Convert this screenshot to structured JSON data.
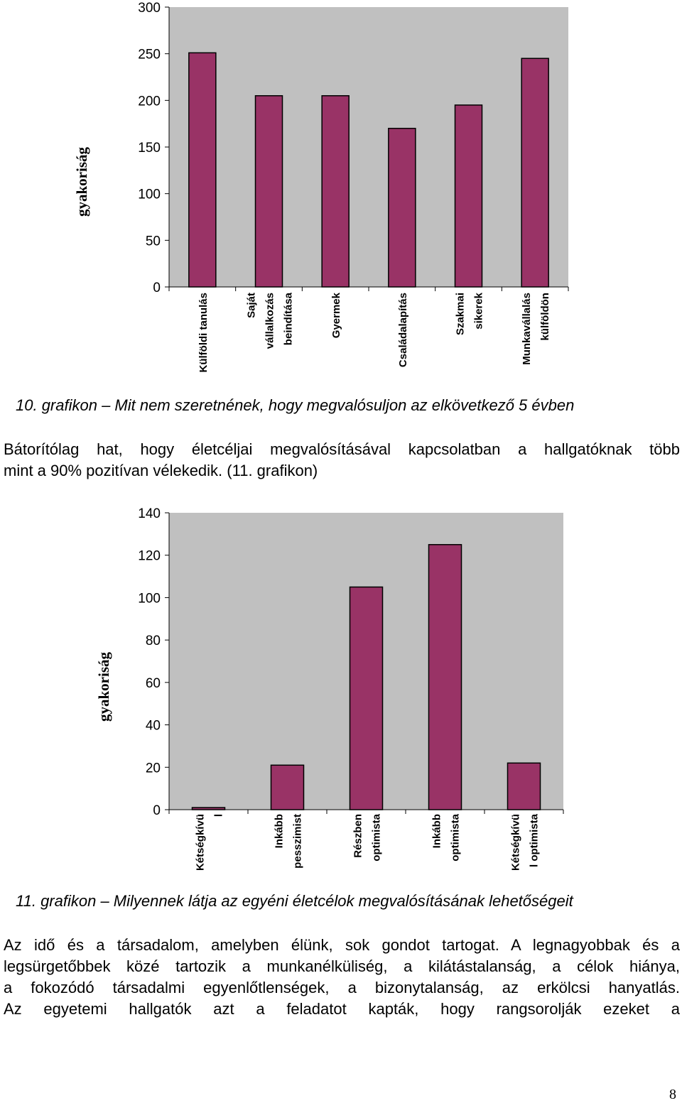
{
  "charts": [
    {
      "chart_data": {
        "type": "bar",
        "ylabel": "gyakoriság",
        "ylim": [
          0,
          300
        ],
        "yticks": [
          0,
          50,
          100,
          150,
          200,
          250,
          300
        ],
        "categories": [
          [
            "Külföldi tanulás"
          ],
          [
            "Saját",
            "vállalkozás",
            "beindítása"
          ],
          [
            "Gyermek"
          ],
          [
            "Családalapítás"
          ],
          [
            "Szakmai",
            "sikerek"
          ],
          [
            "Munkavállalás",
            "külföldön"
          ]
        ],
        "values": [
          251,
          205,
          205,
          170,
          195,
          245
        ],
        "grid": false,
        "plot_background": "#c0c0c0",
        "bar_color": "#993366"
      }
    },
    {
      "chart_data": {
        "type": "bar",
        "ylabel": "gyakoriság",
        "ylim": [
          0,
          140
        ],
        "yticks": [
          0,
          20,
          40,
          60,
          80,
          100,
          120,
          140
        ],
        "categories": [
          [
            "Kétségkívü",
            "l"
          ],
          [
            "Inkább",
            "pesszimist"
          ],
          [
            "Részben",
            "optimista"
          ],
          [
            "Inkább",
            "optimista"
          ],
          [
            "Kétségkívü",
            "l optimista"
          ]
        ],
        "values": [
          1,
          21,
          105,
          125,
          22
        ],
        "grid": false,
        "plot_background": "#c0c0c0",
        "bar_color": "#993366"
      }
    }
  ],
  "text": {
    "caption10": "10. grafikon – Mit nem szeretnének, hogy megvalósuljon az elkövetkező 5 évben",
    "para1_line1": "Bátorítólag hat, hogy életcéljai megvalósításával kapcsolatban a hallgatóknak több",
    "para1_line2": "mint a 90% pozitívan vélekedik. (11. grafikon)",
    "caption11": "11. grafikon – Milyennek látja az egyéni életcélok megvalósításának lehetőségeit",
    "para2_line1": "Az idő és a társadalom, amelyben élünk, sok gondot tartogat. A legnagyobbak és a",
    "para2_line2": "legsürgetőbbek közé tartozik a munkanélküliség, a kilátástalanság, a célok hiánya,",
    "para2_line3": "a fokozódó társadalmi egyenlőtlenségek, a bizonytalanság, az erkölcsi hanyatlás.",
    "para2_line4": "Az egyetemi hallgatók azt a feladatot kapták, hogy rangsorolják ezeket a",
    "page_number": "8"
  }
}
